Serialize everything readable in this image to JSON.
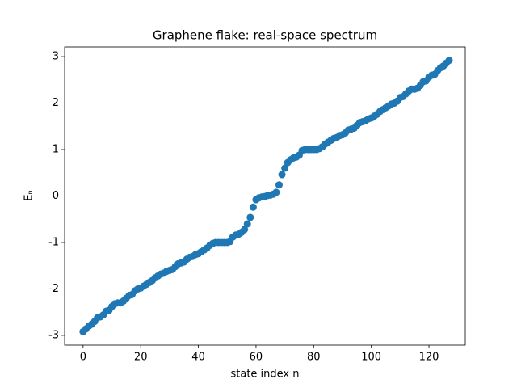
{
  "chart_data": {
    "type": "scatter",
    "title": "Graphene flake: real-space spectrum",
    "xlabel": "state index n",
    "ylabel": "Eₙ",
    "x": [
      0,
      1,
      2,
      3,
      4,
      5,
      6,
      7,
      8,
      9,
      10,
      11,
      12,
      13,
      14,
      15,
      16,
      17,
      18,
      19,
      20,
      21,
      22,
      23,
      24,
      25,
      26,
      27,
      28,
      29,
      30,
      31,
      32,
      33,
      34,
      35,
      36,
      37,
      38,
      39,
      40,
      41,
      42,
      43,
      44,
      45,
      46,
      47,
      48,
      49,
      50,
      51,
      52,
      53,
      54,
      55,
      56,
      57,
      58,
      59,
      60,
      61,
      62,
      63,
      64,
      65,
      66,
      67,
      68,
      69,
      70,
      71,
      72,
      73,
      74,
      75,
      76,
      77,
      78,
      79,
      80,
      81,
      82,
      83,
      84,
      85,
      86,
      87,
      88,
      89,
      90,
      91,
      92,
      93,
      94,
      95,
      96,
      97,
      98,
      99,
      100,
      101,
      102,
      103,
      104,
      105,
      106,
      107,
      108,
      109,
      110,
      111,
      112,
      113,
      114,
      115,
      116,
      117,
      118,
      119,
      120,
      121,
      122,
      123,
      124,
      125,
      126,
      127
    ],
    "values": [
      -2.92,
      -2.86,
      -2.8,
      -2.76,
      -2.7,
      -2.62,
      -2.6,
      -2.56,
      -2.48,
      -2.46,
      -2.38,
      -2.32,
      -2.3,
      -2.3,
      -2.26,
      -2.2,
      -2.14,
      -2.12,
      -2.04,
      -2.0,
      -1.98,
      -1.94,
      -1.9,
      -1.86,
      -1.82,
      -1.76,
      -1.72,
      -1.68,
      -1.66,
      -1.62,
      -1.6,
      -1.58,
      -1.52,
      -1.46,
      -1.44,
      -1.42,
      -1.36,
      -1.32,
      -1.3,
      -1.26,
      -1.24,
      -1.2,
      -1.16,
      -1.12,
      -1.06,
      -1.02,
      -1.0,
      -1.0,
      -1.0,
      -1.0,
      -1.0,
      -0.98,
      -0.88,
      -0.84,
      -0.82,
      -0.78,
      -0.72,
      -0.6,
      -0.46,
      -0.24,
      -0.08,
      -0.04,
      -0.02,
      -0.01,
      0.01,
      0.02,
      0.04,
      0.08,
      0.24,
      0.46,
      0.6,
      0.72,
      0.78,
      0.82,
      0.84,
      0.88,
      0.98,
      1.0,
      1.0,
      1.0,
      1.0,
      1.0,
      1.02,
      1.06,
      1.12,
      1.16,
      1.2,
      1.24,
      1.26,
      1.3,
      1.32,
      1.36,
      1.42,
      1.44,
      1.46,
      1.52,
      1.58,
      1.6,
      1.62,
      1.66,
      1.68,
      1.72,
      1.76,
      1.82,
      1.86,
      1.9,
      1.94,
      1.98,
      2.0,
      2.04,
      2.12,
      2.14,
      2.2,
      2.26,
      2.3,
      2.3,
      2.32,
      2.38,
      2.46,
      2.48,
      2.56,
      2.6,
      2.62,
      2.7,
      2.76,
      2.8,
      2.86,
      2.92
    ],
    "color": "#1f77b4",
    "xlim": [
      -6.4,
      132.6
    ],
    "xticks": [
      0,
      20,
      40,
      60,
      80,
      100,
      120
    ],
    "ylim": [
      -3.21,
      3.21
    ],
    "yticks": [
      -3,
      -2,
      -1,
      0,
      1,
      2,
      3
    ]
  }
}
